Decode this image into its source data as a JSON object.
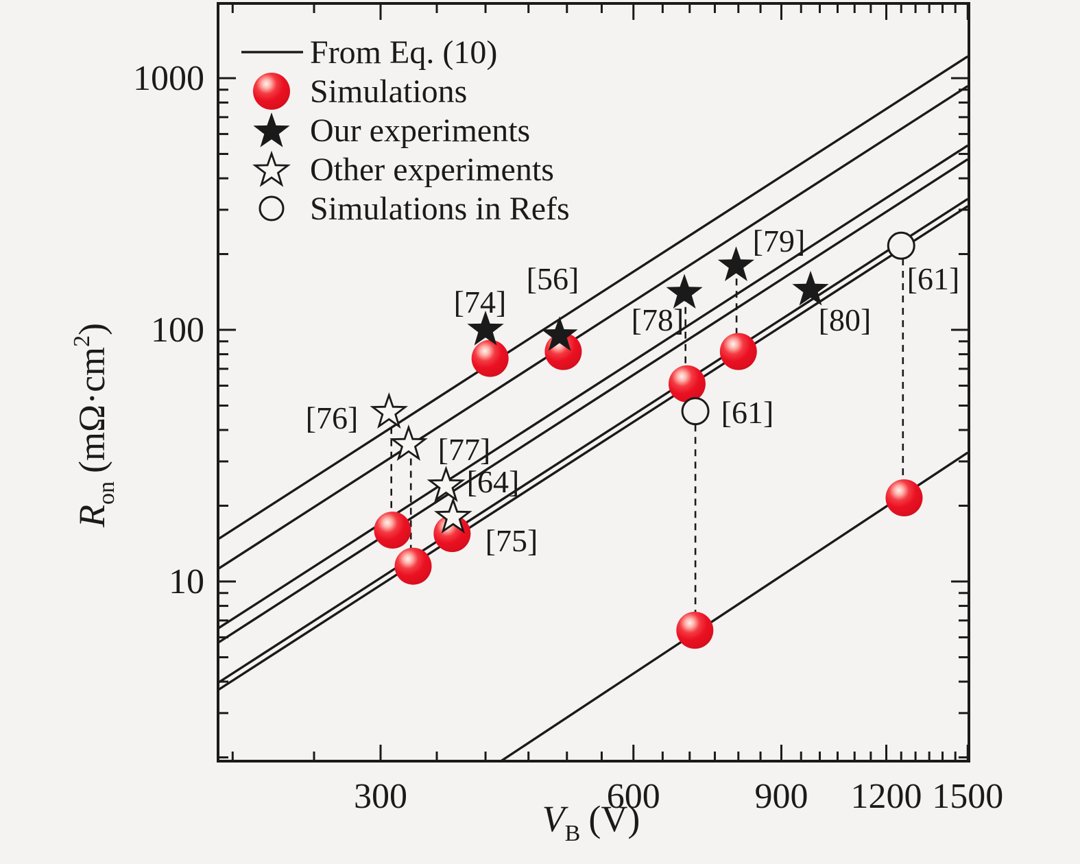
{
  "figure": {
    "background": "#f4f3f1",
    "ink": "#1a1a1a",
    "ball_colors": {
      "highlight": "#fff3f1",
      "light": "#ffb4ab",
      "mid": "#f43a42",
      "core": "#ea1022",
      "deep": "#dc0f1f",
      "rim": "#b60d19"
    }
  },
  "legend": {
    "items": [
      {
        "marker": "line-sample",
        "label": "From Eq. (10)"
      },
      {
        "marker": "red-ball",
        "label": "Simulations"
      },
      {
        "marker": "filled-star",
        "label": "Our experiments"
      },
      {
        "marker": "open-star",
        "label": "Other experiments"
      },
      {
        "marker": "open-circle",
        "label": "Simulations in Refs"
      }
    ]
  },
  "chart_data": {
    "type": "scatter",
    "x_scale": "log",
    "y_scale": "log",
    "xlabel": {
      "symbol": "V",
      "subscript": "B",
      "unit": "(V)"
    },
    "ylabel": {
      "symbol": "R",
      "subscript": "on",
      "unit": "(mΩ·cm",
      "superscript": "2",
      "close": ")"
    },
    "xlim": [
      192,
      1503
    ],
    "ylim": [
      1.9,
      1950
    ],
    "x_major_ticks": [
      300,
      600,
      900,
      1200,
      1500
    ],
    "x_minor_ticks": [
      200,
      250,
      350,
      400,
      450,
      500,
      550,
      650,
      700,
      750,
      800,
      850,
      950,
      1000,
      1050,
      1100,
      1150,
      1250,
      1300,
      1350,
      1400,
      1450
    ],
    "y_major_ticks": [
      10,
      100,
      1000
    ],
    "y_minor_ticks": [
      2,
      3,
      4,
      5,
      6,
      7,
      8,
      9,
      20,
      30,
      40,
      50,
      60,
      70,
      80,
      90,
      200,
      300,
      400,
      500,
      600,
      700,
      800,
      900
    ],
    "eq10_lines": [
      {
        "points": [
          [
            192,
            14.7
          ],
          [
            1500,
            1220
          ]
        ]
      },
      {
        "points": [
          [
            192,
            11.2
          ],
          [
            1500,
            930
          ]
        ]
      },
      {
        "points": [
          [
            192,
            6.5
          ],
          [
            1500,
            540
          ]
        ]
      },
      {
        "points": [
          [
            192,
            5.7
          ],
          [
            1500,
            476
          ]
        ]
      },
      {
        "points": [
          [
            192,
            3.95
          ],
          [
            1500,
            331
          ]
        ]
      },
      {
        "points": [
          [
            192,
            3.7
          ],
          [
            1500,
            310
          ]
        ]
      },
      {
        "points": [
          [
            417,
            1.93
          ],
          [
            1500,
            32.5
          ]
        ]
      }
    ],
    "series": [
      {
        "name": "Simulations",
        "marker": "red-ball",
        "points": [
          {
            "v": 310,
            "r": 16
          },
          {
            "v": 328,
            "r": 11.5
          },
          {
            "v": 365,
            "r": 15.5
          },
          {
            "v": 405,
            "r": 77
          },
          {
            "v": 495,
            "r": 82
          },
          {
            "v": 695,
            "r": 61
          },
          {
            "v": 800,
            "r": 82
          },
          {
            "v": 710,
            "r": 6.4
          },
          {
            "v": 1260,
            "r": 21.5
          }
        ]
      },
      {
        "name": "Our experiments",
        "marker": "filled-star",
        "points": [
          {
            "v": 400,
            "r": 100,
            "ref": "[74]"
          },
          {
            "v": 490,
            "r": 95,
            "ref": "[56]"
          },
          {
            "v": 690,
            "r": 140,
            "ref": "[78]"
          },
          {
            "v": 795,
            "r": 180,
            "ref": "[79]"
          },
          {
            "v": 975,
            "r": 144,
            "ref": "[80]"
          }
        ]
      },
      {
        "name": "Other experiments",
        "marker": "open-star",
        "points": [
          {
            "v": 307,
            "r": 47,
            "ref": "[76]"
          },
          {
            "v": 324,
            "r": 35,
            "ref": "[77]"
          },
          {
            "v": 359,
            "r": 24,
            "ref": "[64]"
          },
          {
            "v": 366,
            "r": 18,
            "ref": "[75]"
          }
        ]
      },
      {
        "name": "Simulations in Refs",
        "marker": "open-circle",
        "points": [
          {
            "v": 711,
            "r": 47.5,
            "ref": "[61]"
          },
          {
            "v": 1250,
            "r": 216,
            "ref": "[61]"
          }
        ]
      }
    ],
    "dashed_connectors": [
      {
        "v": 309,
        "r_from": 46,
        "r_to": 16
      },
      {
        "v": 326,
        "r_from": 34.5,
        "r_to": 11.5
      },
      {
        "v": 692,
        "r_from": 138,
        "r_to": 61
      },
      {
        "v": 711,
        "r_from": 47,
        "r_to": 6.4
      },
      {
        "v": 796,
        "r_from": 179,
        "r_to": 82
      },
      {
        "v": 1256,
        "r_from": 215,
        "r_to": 21.5
      }
    ],
    "annotations": [
      {
        "text": "[74]",
        "x": 700,
        "y": 456
      },
      {
        "text": "[56]",
        "x": 806,
        "y": 422
      },
      {
        "text": "[78]",
        "x": 959,
        "y": 482
      },
      {
        "text": "[79]",
        "x": 1136,
        "y": 367
      },
      {
        "text": "[80]",
        "x": 1232,
        "y": 482
      },
      {
        "text": "[61]",
        "x": 1090,
        "y": 617
      },
      {
        "text": "[61]",
        "x": 1361,
        "y": 422
      },
      {
        "text": "[76]",
        "x": 484,
        "y": 625
      },
      {
        "text": "[77]",
        "x": 677,
        "y": 671
      },
      {
        "text": "[64]",
        "x": 719,
        "y": 718
      },
      {
        "text": "[75]",
        "x": 746,
        "y": 804
      }
    ]
  }
}
